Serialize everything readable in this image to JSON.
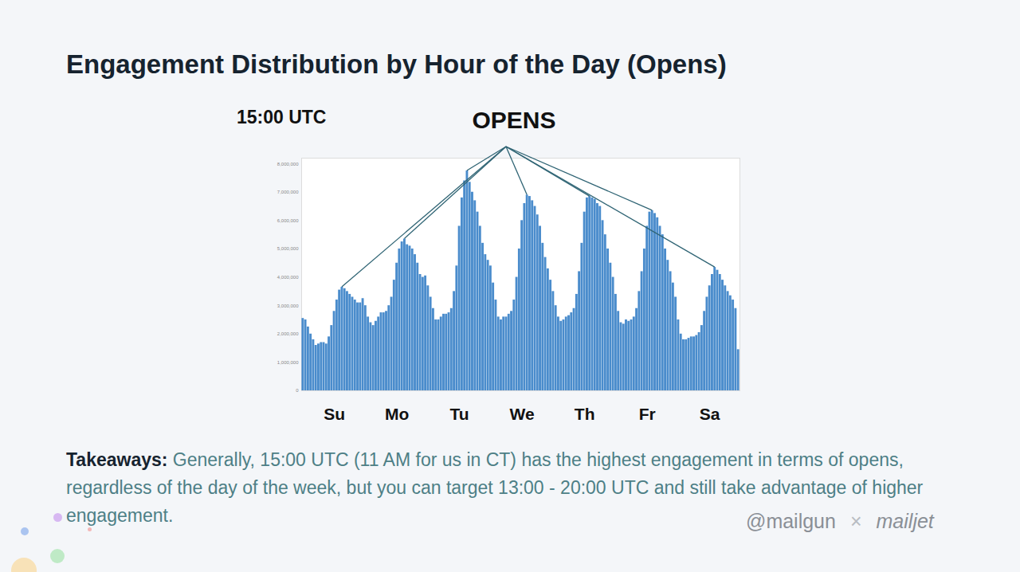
{
  "chart_data": {
    "type": "bar",
    "title": "Engagement Distribution by Hour of the Day (Opens)",
    "annotations": {
      "time": "15:00 UTC",
      "label": "OPENS"
    },
    "caption": {
      "label": "Takeaways:",
      "text": "Generally, 15:00 UTC (11 AM for us in CT) has the highest engagement in terms of opens, regardless of the day of the week, but you can target 13:00 - 20:00 UTC and still take advantage of higher engagement."
    },
    "logos": [
      "@mailgun",
      "×",
      "mailjet"
    ],
    "color": "#4a8ccc",
    "grid": false,
    "categories": [
      null,
      null,
      null,
      null,
      null,
      null,
      null,
      null,
      null,
      null,
      null,
      null,
      "Su",
      null,
      null,
      null,
      null,
      null,
      null,
      null,
      null,
      null,
      null,
      null,
      null,
      null,
      null,
      null,
      null,
      null,
      null,
      null,
      null,
      null,
      null,
      null,
      "Mo",
      null,
      null,
      null,
      null,
      null,
      null,
      null,
      null,
      null,
      null,
      null,
      null,
      null,
      null,
      null,
      null,
      null,
      null,
      null,
      null,
      null,
      null,
      null,
      "Tu",
      null,
      null,
      null,
      null,
      null,
      null,
      null,
      null,
      null,
      null,
      null,
      null,
      null,
      null,
      null,
      null,
      null,
      null,
      null,
      null,
      null,
      null,
      null,
      "We",
      null,
      null,
      null,
      null,
      null,
      null,
      null,
      null,
      null,
      null,
      null,
      null,
      null,
      null,
      null,
      null,
      null,
      null,
      null,
      null,
      null,
      null,
      null,
      "Th",
      null,
      null,
      null,
      null,
      null,
      null,
      null,
      null,
      null,
      null,
      null,
      null,
      null,
      null,
      null,
      null,
      null,
      null,
      null,
      null,
      null,
      null,
      null,
      "Fr",
      null,
      null,
      null,
      null,
      null,
      null,
      null,
      null,
      null,
      null,
      null,
      null,
      null,
      null,
      null,
      null,
      null,
      null,
      null,
      null,
      null,
      null,
      null,
      "Sa",
      null,
      null,
      null,
      null,
      null,
      null,
      null,
      null,
      null,
      null,
      null
    ],
    "values": [
      2550000,
      2500000,
      2250000,
      2000000,
      1800000,
      1600000,
      1650000,
      1700000,
      1700000,
      1650000,
      1900000,
      2300000,
      2800000,
      3200000,
      3550000,
      3650000,
      3600000,
      3500000,
      3400000,
      3300000,
      3200000,
      3100000,
      3100000,
      3250000,
      3000000,
      2600000,
      2400000,
      2300000,
      2450000,
      2600000,
      2750000,
      2750000,
      2800000,
      3000000,
      3300000,
      3900000,
      4500000,
      5000000,
      5250000,
      5350000,
      5150000,
      5100000,
      5000000,
      4800000,
      4500000,
      4100000,
      4000000,
      4050000,
      3700000,
      3300000,
      2900000,
      2500000,
      2500000,
      2600000,
      2700000,
      2700000,
      2750000,
      2900000,
      3500000,
      4400000,
      5800000,
      6800000,
      7400000,
      7750000,
      7350000,
      7000000,
      6700000,
      6300000,
      5800000,
      5200000,
      4800000,
      4600000,
      4400000,
      3800000,
      3200000,
      2600000,
      2500000,
      2600000,
      2600000,
      2700000,
      2800000,
      3200000,
      4000000,
      5000000,
      6000000,
      6600000,
      6900000,
      6850000,
      6700000,
      6500000,
      6200000,
      5800000,
      5200000,
      4700000,
      4300000,
      3900000,
      3500000,
      3000000,
      2600000,
      2450000,
      2500000,
      2600000,
      2650000,
      2750000,
      2900000,
      3400000,
      4200000,
      5200000,
      6300000,
      6800000,
      6850000,
      6800000,
      6750000,
      6600000,
      6500000,
      6000000,
      5500000,
      5000000,
      4500000,
      4000000,
      3400000,
      2800000,
      2400000,
      2350000,
      2500000,
      2450000,
      2500000,
      2600000,
      2900000,
      3500000,
      4200000,
      5000000,
      5800000,
      6300000,
      6350000,
      6250000,
      6100000,
      5800000,
      5500000,
      5000000,
      4600000,
      4200000,
      3800000,
      3300000,
      2500000,
      2000000,
      1800000,
      1800000,
      1850000,
      1900000,
      1900000,
      1950000,
      2050000,
      2300000,
      2800000,
      3300000,
      3700000,
      4100000,
      4350000,
      4250000,
      4100000,
      3900000,
      3700000,
      3500000,
      3350000,
      3200000,
      2900000,
      1450000
    ],
    "ylim": [
      0,
      8200000
    ],
    "yticks": [
      0,
      {
        "value": 1000000,
        "label": "1,000,000"
      },
      {
        "value": 2000000,
        "label": "2,000,000"
      },
      {
        "value": 3000000,
        "label": "3,000,000"
      },
      {
        "value": 4000000,
        "label": "4,000,000"
      },
      {
        "value": 5000000,
        "label": "5,000,000"
      },
      {
        "value": 6000000,
        "label": "6,000,000"
      },
      {
        "value": 7000000,
        "label": "7,000,000"
      },
      {
        "value": 8000000,
        "label": "8,000,000"
      }
    ]
  }
}
